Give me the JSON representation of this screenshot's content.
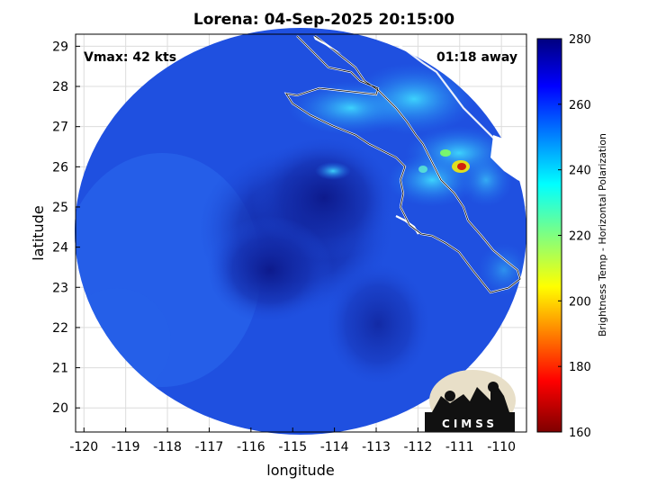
{
  "title": "Lorena: 04-Sep-2025 20:15:00",
  "annotations": {
    "vmax": "Vmax: 42 kts",
    "time_away": "01:18 away"
  },
  "axes": {
    "xlabel": "longitude",
    "ylabel": "latitude",
    "xticks": [
      "-120",
      "-119",
      "-118",
      "-117",
      "-116",
      "-115",
      "-114",
      "-113",
      "-112",
      "-111",
      "-110"
    ],
    "yticks": [
      "29",
      "28",
      "27",
      "26",
      "25",
      "24",
      "23",
      "22",
      "21",
      "20"
    ],
    "xlim": [
      -120.2,
      -109.4
    ],
    "ylim": [
      19.4,
      29.3
    ]
  },
  "colorbar": {
    "label": "Brightness Temp - Horizontal Polarization",
    "ticks": [
      "280",
      "260",
      "240",
      "220",
      "200",
      "180",
      "160"
    ],
    "range": [
      160,
      280
    ]
  },
  "logo": {
    "text": "CIMSS"
  },
  "colors": {
    "background": "#1f4fe0",
    "cold_core": "#1020a0",
    "coast": "#ffffff"
  }
}
